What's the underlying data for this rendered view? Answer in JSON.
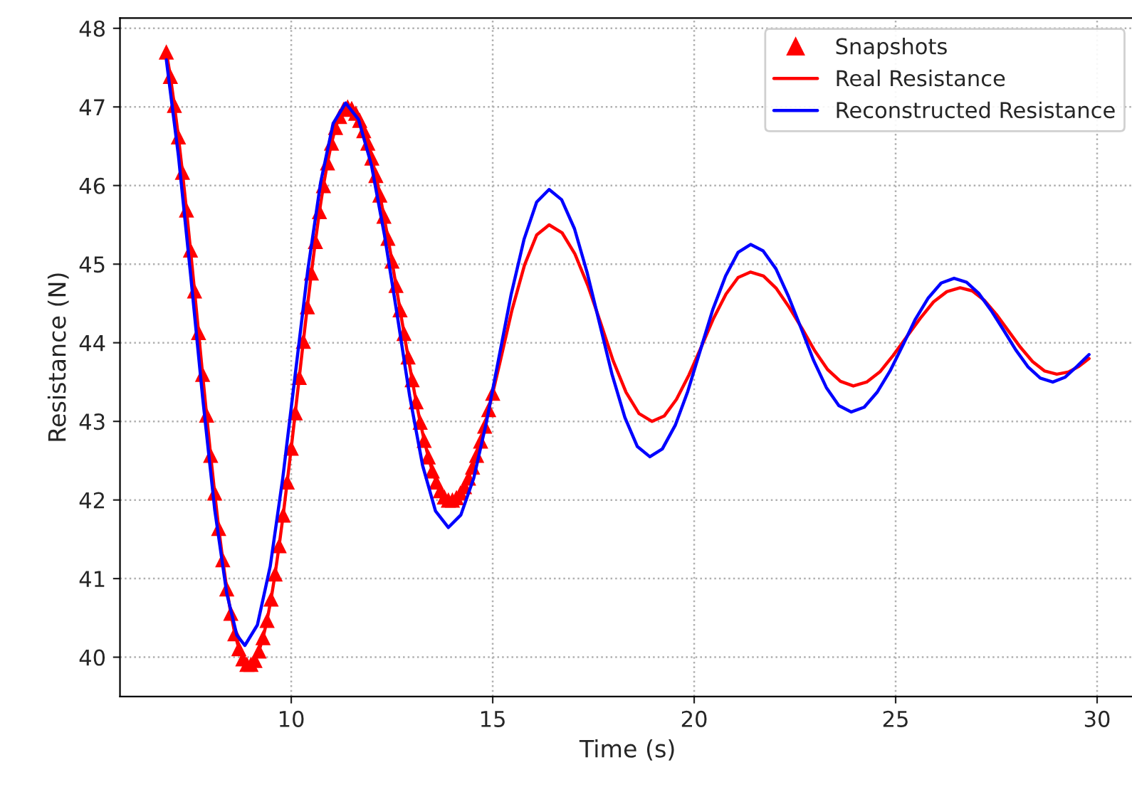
{
  "chart_data": {
    "type": "line",
    "xlabel": "Time (s)",
    "ylabel": "Resistance (N)",
    "xlim": [
      5.75,
      30.95
    ],
    "ylim": [
      39.5,
      48.13
    ],
    "xticks": [
      10,
      15,
      20,
      25,
      30
    ],
    "yticks": [
      40,
      41,
      42,
      43,
      44,
      45,
      46,
      47,
      48
    ],
    "grid": true,
    "legend": "top right",
    "series": [
      {
        "name": "Snapshots",
        "type": "scatter",
        "marker": "triangle",
        "color": "#ff0000",
        "x": [
          6.9,
          7.0,
          7.1,
          7.2,
          7.3,
          7.4,
          7.5,
          7.6,
          7.7,
          7.8,
          7.9,
          8.0,
          8.1,
          8.2,
          8.3,
          8.4,
          8.5,
          8.6,
          8.7,
          8.8,
          8.9,
          9.0,
          9.1,
          9.2,
          9.3,
          9.4,
          9.5,
          9.6,
          9.7,
          9.8,
          9.9,
          10.0,
          10.1,
          10.2,
          10.3,
          10.4,
          10.5,
          10.6,
          10.7,
          10.8,
          10.9,
          11.0,
          11.1,
          11.2,
          11.3,
          11.4,
          11.5,
          11.6,
          11.7,
          11.8,
          11.9,
          12.0,
          12.1,
          12.2,
          12.3,
          12.4,
          12.5,
          12.6,
          12.7,
          12.8,
          12.9,
          13.0,
          13.1,
          13.2,
          13.3,
          13.4,
          13.5,
          13.6,
          13.7,
          13.8,
          13.9,
          14.0,
          14.1,
          14.2,
          14.3,
          14.4,
          14.5,
          14.6,
          14.7,
          14.8,
          14.9,
          15.0
        ],
        "values": [
          47.7,
          47.39,
          47.02,
          46.62,
          46.17,
          45.69,
          45.18,
          44.66,
          44.13,
          43.6,
          43.08,
          42.57,
          42.09,
          41.64,
          41.24,
          40.87,
          40.56,
          40.3,
          40.11,
          39.98,
          39.91,
          39.91,
          39.96,
          40.08,
          40.25,
          40.47,
          40.74,
          41.06,
          41.42,
          41.81,
          42.23,
          42.66,
          43.11,
          43.56,
          44.02,
          44.46,
          44.89,
          45.29,
          45.67,
          46.0,
          46.29,
          46.54,
          46.74,
          46.88,
          46.97,
          47.0,
          46.98,
          46.92,
          46.83,
          46.7,
          46.54,
          46.35,
          46.13,
          45.88,
          45.61,
          45.33,
          45.04,
          44.73,
          44.42,
          44.12,
          43.82,
          43.53,
          43.25,
          42.99,
          42.76,
          42.55,
          42.37,
          42.23,
          42.12,
          42.04,
          42.0,
          42.0,
          42.03,
          42.09,
          42.17,
          42.28,
          42.42,
          42.57,
          42.75,
          42.94,
          43.15,
          43.36
        ]
      },
      {
        "name": "Real Resistance",
        "line_style": "solid",
        "color": "#ff0000",
        "x": [
          6.9,
          7.0,
          7.1,
          7.2,
          7.3,
          7.4,
          7.5,
          7.6,
          7.7,
          7.8,
          7.9,
          8.0,
          8.1,
          8.2,
          8.3,
          8.4,
          8.5,
          8.6,
          8.7,
          8.8,
          8.9,
          9.0,
          9.1,
          9.2,
          9.3,
          9.4,
          9.5,
          9.6,
          9.7,
          9.8,
          9.9,
          10.0,
          10.1,
          10.2,
          10.3,
          10.4,
          10.5,
          10.6,
          10.7,
          10.8,
          10.9,
          11.0,
          11.1,
          11.2,
          11.3,
          11.4,
          11.5,
          11.6,
          11.7,
          11.8,
          11.9,
          12.0,
          12.1,
          12.2,
          12.3,
          12.4,
          12.5,
          12.6,
          12.7,
          12.8,
          12.9,
          13.0,
          13.1,
          13.2,
          13.3,
          13.4,
          13.5,
          13.6,
          13.7,
          13.8,
          13.9,
          14.0,
          14.1,
          14.2,
          14.3,
          14.4,
          14.5,
          14.6,
          14.7,
          14.8,
          14.9,
          15.0,
          15.18,
          15.48,
          15.79,
          16.09,
          16.4,
          16.72,
          17.04,
          17.36,
          17.68,
          17.99,
          18.31,
          18.63,
          18.95,
          19.26,
          19.56,
          19.87,
          20.18,
          20.48,
          20.79,
          21.09,
          21.4,
          21.72,
          22.04,
          22.36,
          22.68,
          22.99,
          23.31,
          23.63,
          23.95,
          24.28,
          24.61,
          24.94,
          25.28,
          25.61,
          25.94,
          26.27,
          26.6,
          26.9,
          27.2,
          27.5,
          27.8,
          28.1,
          28.4,
          28.7,
          29.0,
          29.3,
          29.55,
          29.8
        ],
        "values": [
          47.7,
          47.39,
          47.02,
          46.62,
          46.17,
          45.69,
          45.18,
          44.66,
          44.13,
          43.6,
          43.08,
          42.57,
          42.09,
          41.64,
          41.24,
          40.87,
          40.56,
          40.3,
          40.11,
          39.98,
          39.91,
          39.91,
          39.96,
          40.08,
          40.25,
          40.47,
          40.74,
          41.06,
          41.42,
          41.81,
          42.23,
          42.66,
          43.11,
          43.56,
          44.02,
          44.46,
          44.89,
          45.29,
          45.67,
          46.0,
          46.29,
          46.54,
          46.74,
          46.88,
          46.97,
          47.0,
          46.98,
          46.92,
          46.83,
          46.7,
          46.54,
          46.35,
          46.13,
          45.88,
          45.61,
          45.33,
          45.04,
          44.73,
          44.42,
          44.12,
          43.82,
          43.53,
          43.25,
          42.99,
          42.76,
          42.55,
          42.37,
          42.23,
          42.12,
          42.04,
          42.0,
          42.0,
          42.03,
          42.09,
          42.17,
          42.28,
          42.42,
          42.57,
          42.75,
          42.94,
          43.15,
          43.36,
          43.75,
          44.42,
          44.99,
          45.37,
          45.5,
          45.4,
          45.13,
          44.73,
          44.25,
          43.77,
          43.37,
          43.1,
          43.0,
          43.07,
          43.28,
          43.59,
          43.95,
          44.31,
          44.62,
          44.83,
          44.9,
          44.85,
          44.69,
          44.45,
          44.18,
          43.9,
          43.66,
          43.51,
          43.45,
          43.5,
          43.63,
          43.84,
          44.08,
          44.31,
          44.52,
          44.65,
          44.7,
          44.66,
          44.54,
          44.36,
          44.15,
          43.94,
          43.76,
          43.64,
          43.6,
          43.63,
          43.7,
          43.8
        ]
      },
      {
        "name": "Reconstructed Resistance",
        "line_style": "solid",
        "color": "#0000ff",
        "x": [
          6.9,
          7.2,
          7.5,
          7.8,
          8.1,
          8.4,
          8.65,
          8.85,
          9.16,
          9.48,
          9.79,
          10.1,
          10.41,
          10.73,
          11.04,
          11.35,
          11.67,
          11.99,
          12.31,
          12.63,
          12.94,
          13.26,
          13.58,
          13.9,
          14.21,
          14.53,
          14.84,
          15.15,
          15.46,
          15.78,
          16.09,
          16.4,
          16.71,
          17.03,
          17.34,
          17.65,
          17.96,
          18.28,
          18.59,
          18.9,
          19.21,
          19.53,
          19.84,
          20.15,
          20.46,
          20.78,
          21.09,
          21.4,
          21.71,
          22.03,
          22.34,
          22.65,
          22.96,
          23.28,
          23.59,
          23.9,
          24.22,
          24.54,
          24.86,
          25.18,
          25.49,
          25.81,
          26.13,
          26.45,
          26.76,
          27.06,
          27.37,
          27.68,
          27.98,
          28.29,
          28.59,
          28.9,
          29.2,
          29.5,
          29.8
        ],
        "values": [
          47.6,
          46.38,
          44.88,
          43.31,
          41.88,
          40.81,
          40.28,
          40.15,
          40.41,
          41.16,
          42.28,
          43.6,
          44.92,
          46.04,
          46.79,
          47.05,
          46.84,
          46.26,
          45.38,
          44.35,
          43.32,
          42.44,
          41.86,
          41.65,
          41.81,
          42.28,
          42.98,
          43.8,
          44.62,
          45.32,
          45.79,
          45.95,
          45.82,
          45.45,
          44.9,
          44.25,
          43.6,
          43.05,
          42.68,
          42.55,
          42.65,
          42.95,
          43.38,
          43.9,
          44.42,
          44.85,
          45.15,
          45.25,
          45.17,
          44.94,
          44.59,
          44.19,
          43.78,
          43.43,
          43.2,
          43.12,
          43.18,
          43.37,
          43.64,
          43.97,
          44.3,
          44.57,
          44.76,
          44.82,
          44.77,
          44.63,
          44.41,
          44.16,
          43.91,
          43.69,
          43.55,
          43.5,
          43.56,
          43.7,
          43.85
        ]
      }
    ]
  }
}
